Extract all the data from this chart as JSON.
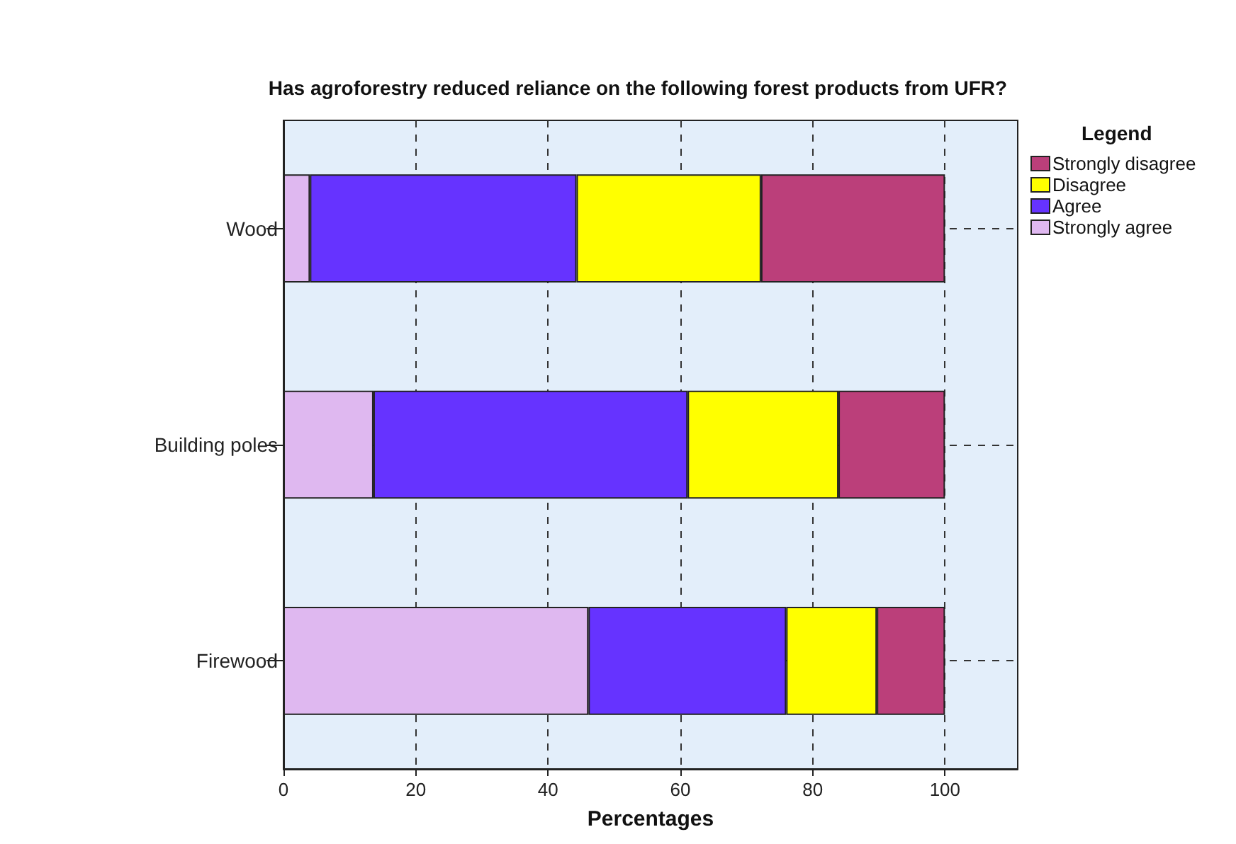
{
  "chart_data": {
    "type": "bar",
    "orientation": "horizontal",
    "stacked": true,
    "title": "Has agroforestry reduced reliance on the following forest products from UFR?",
    "xlabel": "Percentages",
    "legend_title": "Legend",
    "legend": "top right",
    "categories": [
      "Wood",
      "Building poles",
      "Firewood"
    ],
    "series": [
      {
        "name": "Strongly agree",
        "color": "#dfb8f0",
        "values": [
          4,
          13.6,
          46.1
        ]
      },
      {
        "name": "Agree",
        "color": "#6633ff",
        "values": [
          40.3,
          47.5,
          29.9
        ]
      },
      {
        "name": "Disagree",
        "color": "#ffff00",
        "values": [
          27.9,
          22.8,
          13.7
        ]
      },
      {
        "name": "Strongly disagree",
        "color": "#bb3f7a",
        "values": [
          27.8,
          16.1,
          10.3
        ]
      }
    ],
    "xlim": [
      0,
      111
    ],
    "xticks": [
      0,
      20,
      40,
      60,
      80,
      100
    ],
    "grid": true
  }
}
